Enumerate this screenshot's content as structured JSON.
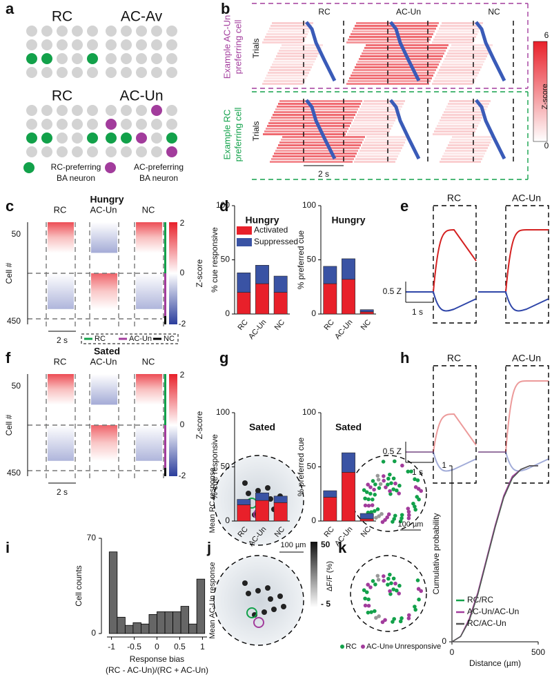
{
  "panels": {
    "a": {
      "letter": "a",
      "grids": [
        "RC",
        "AC-Av",
        "RC",
        "AC-Un"
      ],
      "legend_rc": [
        "RC-preferring",
        "BA neuron"
      ],
      "legend_ac": [
        "AC-preferring",
        "BA neuron"
      ]
    },
    "b": {
      "letter": "b",
      "columns": [
        "RC",
        "AC-Un",
        "NC"
      ],
      "trials": "Trials",
      "example_ac": [
        "Example AC-Un",
        "preferring cell"
      ],
      "example_rc": [
        "Example RC",
        "preferring cell"
      ],
      "scale": "2 s",
      "colorbar": [
        "6",
        "0"
      ],
      "colorbar_label": "Z-score"
    },
    "c": {
      "letter": "c",
      "title": "Hungry",
      "columns": [
        "RC",
        "AC-Un",
        "NC"
      ],
      "rows": [
        "50",
        "450"
      ],
      "ylabel": "Cell #",
      "colorbar": [
        "2",
        "0",
        "-2"
      ],
      "colorbar_label": "Z-score",
      "scale": "2 s",
      "legend": [
        "RC",
        "AC-Un",
        "NC"
      ]
    },
    "d": {
      "letter": "d"
    },
    "e": {
      "letter": "e",
      "columns": [
        "RC",
        "AC-Un"
      ],
      "zscale": "0.5 Z",
      "tscale": "1 s"
    },
    "f": {
      "letter": "f",
      "title": "Sated",
      "columns": [
        "RC",
        "AC-Un",
        "NC"
      ],
      "rows": [
        "50",
        "450"
      ],
      "ylabel": "Cell #",
      "colorbar": [
        "2",
        "0",
        "-2"
      ],
      "colorbar_label": "Z-score",
      "scale": "2 s"
    },
    "g": {
      "letter": "g"
    },
    "h": {
      "letter": "h",
      "columns": [
        "RC",
        "AC-Un"
      ],
      "zscale": "0.5 Z",
      "tscale": "1 s"
    },
    "i": {
      "letter": "i"
    },
    "j": {
      "letter": "j",
      "top": "Mean RC response",
      "bottom": "Mean AC-Un response",
      "scale": "100 µm",
      "colorbar": [
        "50",
        "- 5"
      ],
      "colorbar_label": "ΔF/F (%)"
    },
    "k": {
      "letter": "k",
      "scale": "100 µm",
      "legend": [
        "RC",
        "AC-Un",
        "Unresponsive"
      ]
    }
  },
  "chart_data": [
    {
      "type": "bar",
      "title": "Hungry",
      "ylabel": "% cue responsive",
      "categories": [
        "RC",
        "AC-Un",
        "NC"
      ],
      "series": [
        {
          "name": "Activated",
          "color": "#e8202a",
          "values": [
            20,
            28,
            20
          ]
        },
        {
          "name": "Suppressed",
          "color": "#3a53a4",
          "values": [
            18,
            17,
            15
          ]
        }
      ],
      "ylim": [
        0,
        100
      ],
      "yticks": [
        0,
        50,
        100
      ],
      "legend": "upper right"
    },
    {
      "type": "bar",
      "title": "Hungry",
      "ylabel": "% preferred cue",
      "categories": [
        "RC",
        "AC-Un",
        "NC"
      ],
      "series": [
        {
          "name": "Activated",
          "color": "#e8202a",
          "values": [
            28,
            32,
            2
          ]
        },
        {
          "name": "Suppressed",
          "color": "#3a53a4",
          "values": [
            16,
            19,
            2
          ]
        }
      ],
      "ylim": [
        0,
        100
      ],
      "yticks": [
        0,
        50,
        100
      ]
    },
    {
      "type": "bar",
      "title": "Sated",
      "ylabel": "% cue responsive",
      "categories": [
        "RC",
        "AC-Un",
        "NC"
      ],
      "series": [
        {
          "name": "Activated",
          "color": "#e8202a",
          "values": [
            15,
            19,
            17
          ]
        },
        {
          "name": "Suppressed",
          "color": "#3a53a4",
          "values": [
            5,
            7,
            6
          ]
        }
      ],
      "ylim": [
        0,
        100
      ],
      "yticks": [
        0,
        50,
        100
      ]
    },
    {
      "type": "bar",
      "title": "Sated",
      "ylabel": "% preferred cue",
      "categories": [
        "RC",
        "AC-Un",
        "NC"
      ],
      "series": [
        {
          "name": "Activated",
          "color": "#e8202a",
          "values": [
            22,
            45,
            2
          ]
        },
        {
          "name": "Suppressed",
          "color": "#3a53a4",
          "values": [
            6,
            18,
            5
          ]
        }
      ],
      "ylim": [
        0,
        100
      ],
      "yticks": [
        0,
        50,
        100
      ]
    },
    {
      "type": "histogram",
      "xlabel": [
        "Response bias",
        "(RC - AC-Un)/(RC + AC-Un)"
      ],
      "ylabel": "Cell counts",
      "color": "#666666",
      "bins": [
        -1.05,
        -0.875,
        -0.7,
        -0.525,
        -0.35,
        -0.175,
        0,
        0.175,
        0.35,
        0.525,
        0.7,
        0.875,
        1.05
      ],
      "counts": [
        60,
        12,
        6,
        8,
        7,
        14,
        16,
        16,
        16,
        20,
        7,
        40
      ],
      "xlim": [
        -1.1,
        1.1
      ],
      "xticks": [
        -1,
        -0.5,
        0,
        0.5,
        1
      ],
      "ylim": [
        0,
        70
      ],
      "yticks": [
        0,
        70
      ]
    },
    {
      "type": "line",
      "xlabel": "Distance (µm)",
      "ylabel": "Cumulative probability",
      "x": [
        0,
        50,
        100,
        150,
        200,
        250,
        300,
        350,
        400,
        450,
        500
      ],
      "series": [
        {
          "name": "RC/RC",
          "color": "#12a14a",
          "values": [
            0,
            0.03,
            0.12,
            0.27,
            0.46,
            0.65,
            0.82,
            0.93,
            0.98,
            1,
            1
          ]
        },
        {
          "name": "AC-Un/AC-Un",
          "color": "#a23c9c",
          "values": [
            0,
            0.03,
            0.13,
            0.28,
            0.47,
            0.66,
            0.83,
            0.94,
            0.98,
            1,
            1
          ]
        },
        {
          "name": "RC/AC-Un",
          "color": "#555555",
          "values": [
            0,
            0.03,
            0.12,
            0.27,
            0.46,
            0.65,
            0.82,
            0.93,
            0.98,
            1,
            1
          ]
        }
      ],
      "xlim": [
        0,
        500
      ],
      "xticks": [
        0,
        500
      ],
      "ylim": [
        0,
        1
      ],
      "yticks": [
        0,
        1
      ],
      "legend": "lower right"
    }
  ]
}
